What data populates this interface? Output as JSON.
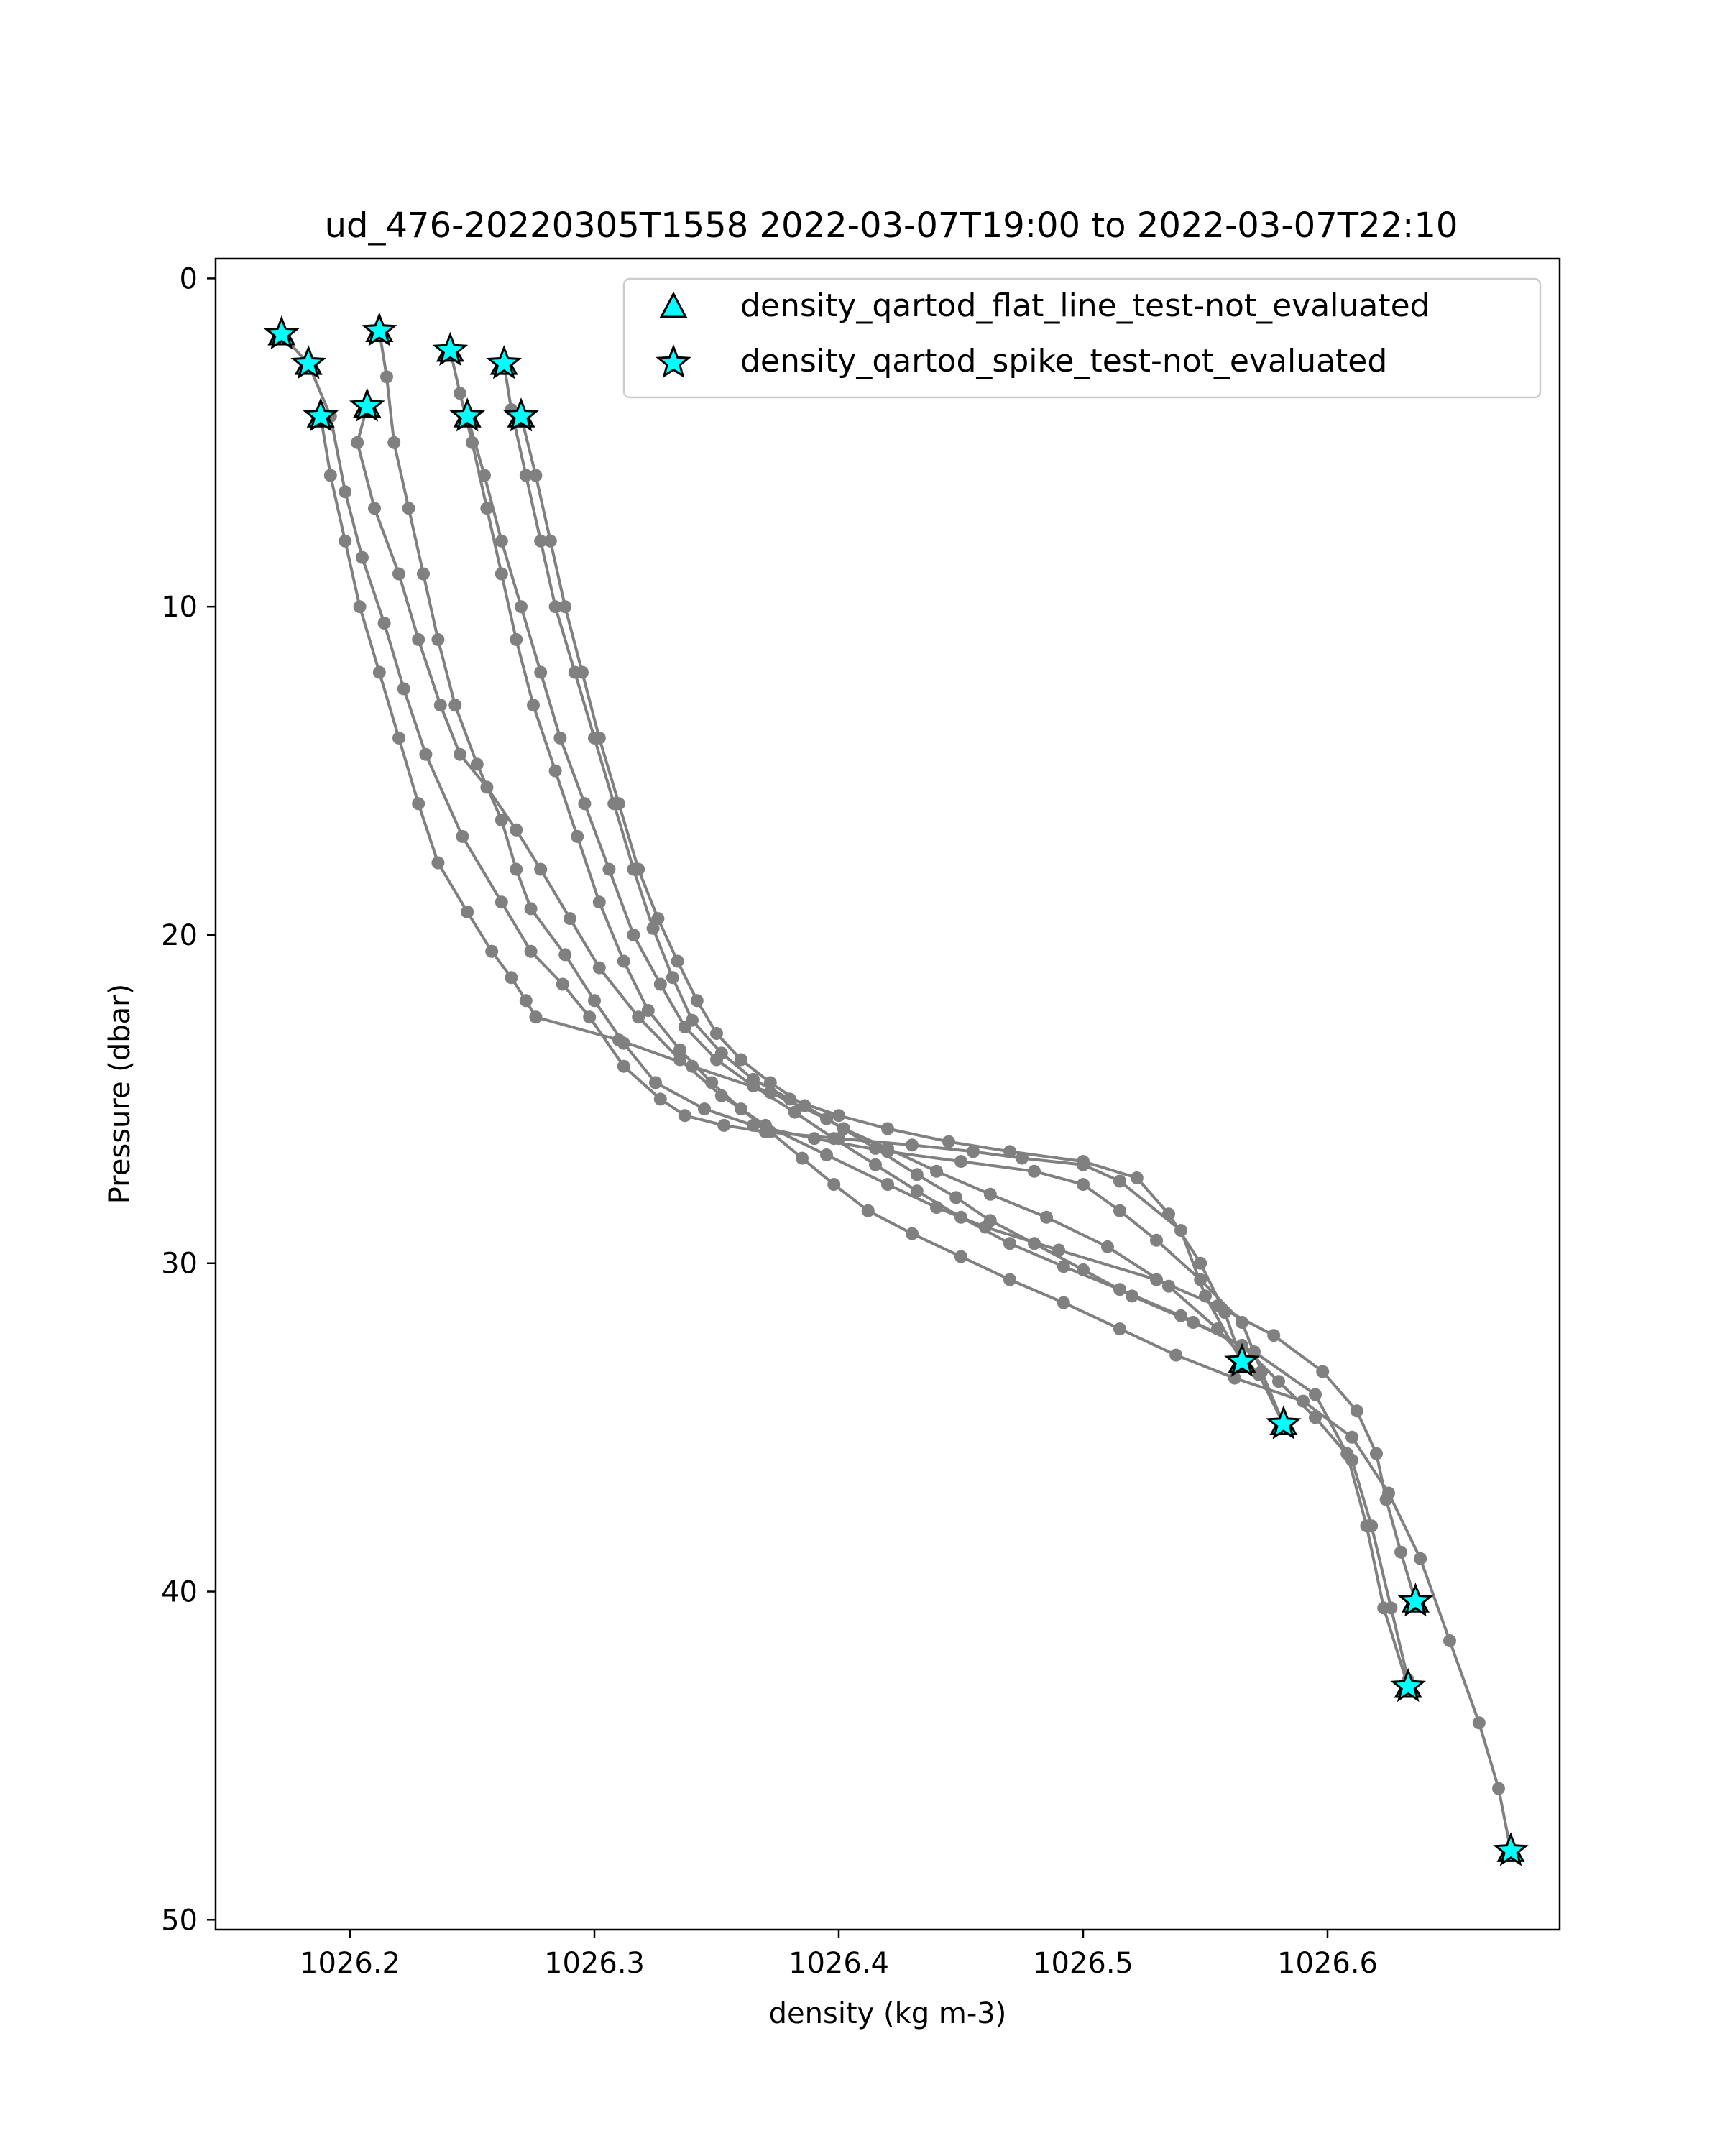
{
  "chart_data": {
    "type": "scatter",
    "title": "ud_476-20220305T1558 2022-03-07T19:00 to 2022-03-07T22:10",
    "xlabel": "density (kg m-3)",
    "ylabel": "Pressure (dbar)",
    "xlim": [
      1026.145,
      1026.695
    ],
    "ylim": [
      50.3,
      -0.6
    ],
    "y_inverted": true,
    "grid": false,
    "legend_position": "top-right",
    "x_ticks": [
      1026.2,
      1026.3,
      1026.4,
      1026.5,
      1026.6
    ],
    "x_tick_labels": [
      "1026.2",
      "1026.3",
      "1026.4",
      "1026.5",
      "1026.6"
    ],
    "y_ticks": [
      0,
      10,
      20,
      30,
      40,
      50
    ],
    "y_tick_labels": [
      "0",
      "10",
      "20",
      "30",
      "40",
      "50"
    ],
    "colors": {
      "profile": "#808080",
      "marker_fill": "#00ffff",
      "marker_edge": "#000000"
    },
    "legend": [
      {
        "label": "density_qartod_flat_line_test-not_evaluated",
        "marker": "triangle"
      },
      {
        "label": "density_qartod_spike_test-not_evaluated",
        "marker": "star"
      }
    ],
    "profiles": [
      {
        "x": [
          1026.172,
          1026.183,
          1026.192,
          1026.198,
          1026.205,
          1026.214,
          1026.222,
          1026.231,
          1026.246,
          1026.262,
          1026.274,
          1026.287,
          1026.298,
          1026.312,
          1026.327,
          1026.337,
          1026.353,
          1026.37,
          1026.4,
          1026.43,
          1026.455,
          1026.475,
          1026.5,
          1026.515,
          1026.54,
          1026.55,
          1026.565
        ],
        "y": [
          1.7,
          2.6,
          4.2,
          6.5,
          8.5,
          10.5,
          12.5,
          14.5,
          17.0,
          19.0,
          20.5,
          21.5,
          22.5,
          24.0,
          25.0,
          25.5,
          25.8,
          26.0,
          26.2,
          26.4,
          26.6,
          26.8,
          27.0,
          27.5,
          29.0,
          31.0,
          33.0
        ]
      },
      {
        "x": [
          1026.212,
          1026.215,
          1026.218,
          1026.224,
          1026.23,
          1026.236,
          1026.243,
          1026.252,
          1026.262,
          1026.268,
          1026.274,
          1026.288,
          1026.3,
          1026.312,
          1026.325,
          1026.345,
          1026.365,
          1026.39,
          1026.42,
          1026.45,
          1026.48,
          1026.5,
          1026.515,
          1026.53,
          1026.548,
          1026.565,
          1026.573,
          1026.582
        ],
        "y": [
          1.6,
          3.0,
          5.0,
          7.0,
          9.0,
          11.0,
          13.0,
          14.8,
          16.5,
          18.0,
          19.2,
          20.6,
          22.0,
          23.3,
          24.5,
          25.3,
          25.8,
          26.2,
          26.6,
          26.9,
          27.2,
          27.6,
          28.4,
          29.3,
          30.5,
          31.8,
          33.3,
          34.9
        ]
      },
      {
        "x": [
          1026.207,
          1026.203,
          1026.21,
          1026.22,
          1026.228,
          1026.237,
          1026.245,
          1026.256,
          1026.268,
          1026.278,
          1026.29,
          1026.302,
          1026.318,
          1026.335,
          1026.352,
          1026.37,
          1026.395,
          1026.42,
          1026.44,
          1026.46,
          1026.49,
          1026.53,
          1026.555,
          1026.578,
          1026.598,
          1026.612,
          1026.62,
          1026.624,
          1026.63,
          1026.636
        ],
        "y": [
          3.9,
          5.0,
          7.0,
          9.0,
          11.0,
          13.0,
          14.5,
          15.5,
          16.8,
          18.0,
          19.5,
          21.0,
          22.5,
          23.8,
          24.9,
          25.8,
          26.7,
          27.6,
          28.3,
          28.9,
          29.6,
          30.5,
          31.3,
          32.2,
          33.3,
          34.5,
          35.8,
          37.2,
          38.8,
          40.3
        ]
      },
      {
        "x": [
          1026.188,
          1026.192,
          1026.198,
          1026.204,
          1026.212,
          1026.22,
          1026.228,
          1026.236,
          1026.248,
          1026.258,
          1026.266,
          1026.272,
          1026.276,
          1026.31,
          1026.34,
          1026.372,
          1026.395,
          1026.415,
          1026.432,
          1026.448,
          1026.462,
          1026.48,
          1026.5,
          1026.52,
          1026.545,
          1026.57,
          1026.595,
          1026.608,
          1026.616,
          1026.623,
          1026.633
        ],
        "y": [
          4.2,
          6.0,
          8.0,
          10.0,
          12.0,
          14.0,
          16.0,
          17.8,
          19.3,
          20.5,
          21.3,
          22.0,
          22.5,
          23.2,
          24.0,
          24.8,
          25.6,
          26.5,
          27.3,
          28.0,
          28.7,
          29.4,
          30.2,
          31.0,
          31.8,
          32.7,
          34.0,
          35.8,
          38.0,
          40.5,
          42.9
        ]
      },
      {
        "x": [
          1026.241,
          1026.245,
          1026.25,
          1026.256,
          1026.262,
          1026.268,
          1026.275,
          1026.284,
          1026.293,
          1026.302,
          1026.312,
          1026.322,
          1026.335,
          1026.348,
          1026.36,
          1026.372,
          1026.385,
          1026.398,
          1026.412,
          1026.43,
          1026.45,
          1026.47,
          1026.492,
          1026.515,
          1026.538,
          1026.562,
          1026.59,
          1026.61,
          1026.625,
          1026.638,
          1026.65,
          1026.662,
          1026.67,
          1026.675
        ],
        "y": [
          2.2,
          3.5,
          5.0,
          7.0,
          9.0,
          11.0,
          13.0,
          15.0,
          17.0,
          19.0,
          20.8,
          22.3,
          23.5,
          24.5,
          25.3,
          26.0,
          26.8,
          27.6,
          28.4,
          29.1,
          29.8,
          30.5,
          31.2,
          32.0,
          32.8,
          33.5,
          34.2,
          35.3,
          37.0,
          39.0,
          41.5,
          44.0,
          46.0,
          47.9
        ]
      },
      {
        "x": [
          1026.263,
          1026.266,
          1026.272,
          1026.278,
          1026.284,
          1026.292,
          1026.3,
          1026.308,
          1026.316,
          1026.324,
          1026.332,
          1026.34,
          1026.352,
          1026.365,
          1026.38,
          1026.4,
          1026.42,
          1026.445,
          1026.47,
          1026.5,
          1026.522,
          1026.535,
          1026.548,
          1026.558,
          1026.565
        ],
        "y": [
          2.6,
          4.0,
          6.0,
          8.0,
          10.0,
          12.0,
          14.0,
          16.0,
          18.0,
          19.8,
          21.3,
          22.6,
          23.6,
          24.4,
          25.0,
          25.5,
          25.9,
          26.3,
          26.6,
          26.9,
          27.4,
          28.5,
          30.0,
          31.5,
          33.0
        ]
      },
      {
        "x": [
          1026.248,
          1026.255,
          1026.262,
          1026.27,
          1026.278,
          1026.286,
          1026.296,
          1026.306,
          1026.316,
          1026.327,
          1026.337,
          1026.35,
          1026.365,
          1026.382,
          1026.398,
          1026.415,
          1026.432,
          1026.45,
          1026.47,
          1026.492,
          1026.515,
          1026.54,
          1026.565,
          1026.58,
          1026.595,
          1026.61,
          1026.618,
          1026.626,
          1026.633
        ],
        "y": [
          4.2,
          6.0,
          8.0,
          10.0,
          12.0,
          14.0,
          16.0,
          18.0,
          20.0,
          21.5,
          22.8,
          23.8,
          24.6,
          25.4,
          26.2,
          27.0,
          27.8,
          28.6,
          29.4,
          30.1,
          30.8,
          31.6,
          32.5,
          33.6,
          34.7,
          36.0,
          38.0,
          40.5,
          42.7
        ]
      },
      {
        "x": [
          1026.27,
          1026.276,
          1026.282,
          1026.288,
          1026.295,
          1026.302,
          1026.31,
          1026.318,
          1026.326,
          1026.334,
          1026.342,
          1026.35,
          1026.36,
          1026.372,
          1026.386,
          1026.402,
          1026.42,
          1026.44,
          1026.462,
          1026.485,
          1026.51,
          1026.535,
          1026.555,
          1026.572,
          1026.582
        ],
        "y": [
          4.2,
          6.0,
          8.0,
          10.0,
          12.0,
          14.0,
          16.0,
          18.0,
          19.5,
          20.8,
          22.0,
          23.0,
          23.8,
          24.5,
          25.2,
          25.9,
          26.5,
          27.2,
          27.9,
          28.6,
          29.5,
          30.7,
          32.0,
          33.4,
          34.9
        ]
      }
    ],
    "spike_flags": [
      {
        "x": 1026.172,
        "y": 1.7
      },
      {
        "x": 1026.212,
        "y": 1.6
      },
      {
        "x": 1026.241,
        "y": 2.2
      },
      {
        "x": 1026.183,
        "y": 2.6
      },
      {
        "x": 1026.263,
        "y": 2.6
      },
      {
        "x": 1026.207,
        "y": 3.9
      },
      {
        "x": 1026.188,
        "y": 4.2
      },
      {
        "x": 1026.248,
        "y": 4.2
      },
      {
        "x": 1026.27,
        "y": 4.2
      },
      {
        "x": 1026.565,
        "y": 33.0
      },
      {
        "x": 1026.582,
        "y": 34.9
      },
      {
        "x": 1026.636,
        "y": 40.3
      },
      {
        "x": 1026.633,
        "y": 42.9
      },
      {
        "x": 1026.675,
        "y": 47.9
      }
    ],
    "flat_line_flags": [
      {
        "x": 1026.172,
        "y": 1.7
      },
      {
        "x": 1026.212,
        "y": 1.6
      },
      {
        "x": 1026.241,
        "y": 2.2
      },
      {
        "x": 1026.183,
        "y": 2.6
      },
      {
        "x": 1026.263,
        "y": 2.6
      },
      {
        "x": 1026.207,
        "y": 3.9
      },
      {
        "x": 1026.188,
        "y": 4.2
      },
      {
        "x": 1026.248,
        "y": 4.2
      },
      {
        "x": 1026.27,
        "y": 4.2
      },
      {
        "x": 1026.565,
        "y": 33.0
      },
      {
        "x": 1026.582,
        "y": 34.9
      },
      {
        "x": 1026.636,
        "y": 40.3
      },
      {
        "x": 1026.633,
        "y": 42.9
      },
      {
        "x": 1026.675,
        "y": 47.9
      }
    ]
  }
}
